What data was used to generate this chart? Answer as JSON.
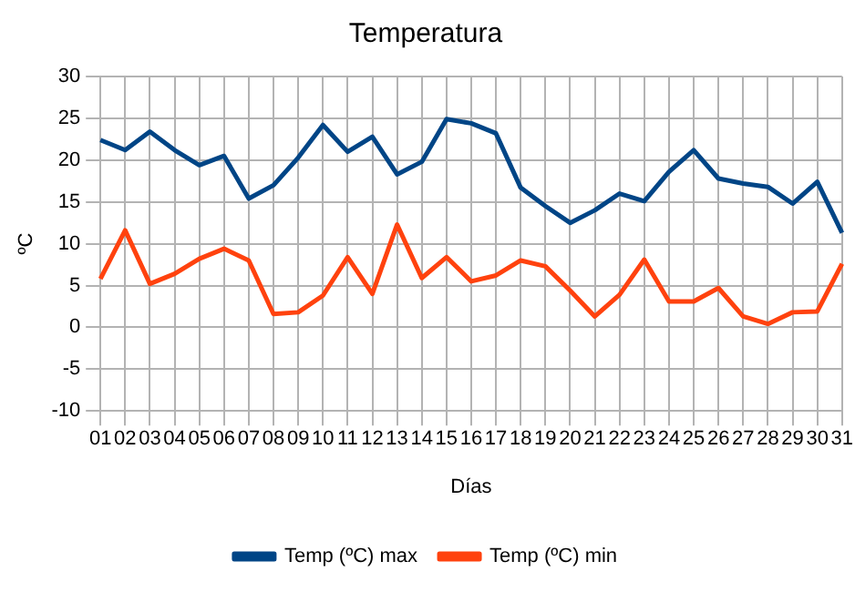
{
  "chart_data": {
    "type": "line",
    "title": "Temperatura",
    "xlabel": "Días",
    "ylabel": "ºC",
    "categories": [
      "01",
      "02",
      "03",
      "04",
      "05",
      "06",
      "07",
      "08",
      "09",
      "10",
      "11",
      "12",
      "13",
      "14",
      "15",
      "16",
      "17",
      "18",
      "19",
      "20",
      "21",
      "22",
      "23",
      "24",
      "25",
      "26",
      "27",
      "28",
      "29",
      "30",
      "31"
    ],
    "series": [
      {
        "name": "Temp (ºC) max",
        "color": "#004586",
        "values": [
          22.4,
          21.2,
          23.4,
          21.2,
          19.4,
          20.5,
          15.4,
          17,
          20.3,
          24.2,
          21,
          22.8,
          18.3,
          19.8,
          24.9,
          24.4,
          23.2,
          16.7,
          14.5,
          12.5,
          14,
          16,
          15.1,
          18.6,
          21.2,
          17.8,
          17.2,
          16.8,
          14.8,
          17.4,
          11.3
        ]
      },
      {
        "name": "Temp (ºC) min",
        "color": "#ff420e",
        "values": [
          5.8,
          11.6,
          5.2,
          6.4,
          8.2,
          9.4,
          8,
          1.6,
          1.8,
          3.8,
          8.4,
          4,
          12.3,
          5.9,
          8.4,
          5.5,
          6.2,
          8,
          7.3,
          4.4,
          1.3,
          3.9,
          8.1,
          3.1,
          3.1,
          4.7,
          1.3,
          0.4,
          1.8,
          1.9,
          7.6
        ]
      }
    ],
    "ylim": [
      -10,
      30
    ],
    "yticks": [
      -10,
      -5,
      0,
      5,
      10,
      15,
      20,
      25,
      30
    ],
    "grid": true,
    "legend": "bottom",
    "marker": "none",
    "line_style": "solid"
  }
}
